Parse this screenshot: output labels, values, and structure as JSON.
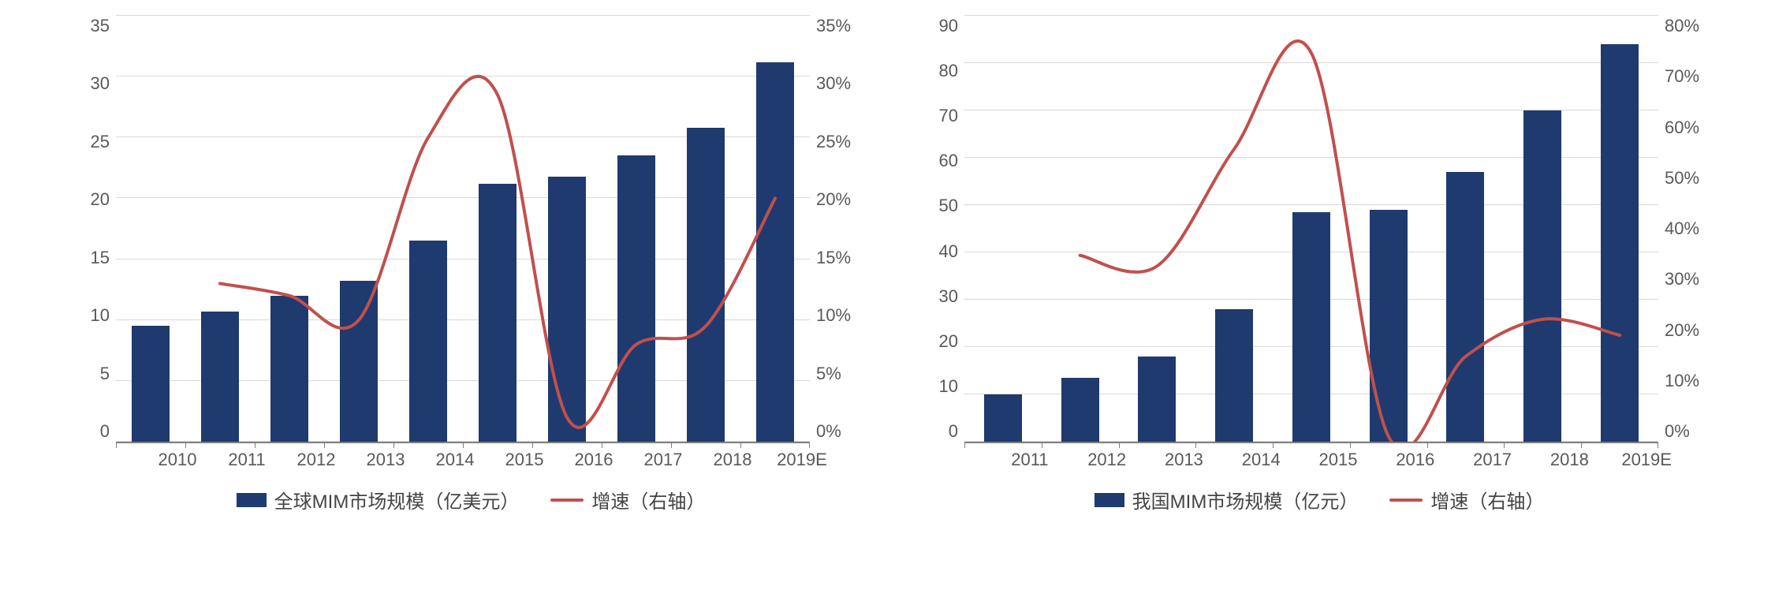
{
  "chart_left": {
    "type": "bar+line",
    "categories": [
      "2010",
      "2011",
      "2012",
      "2013",
      "2014",
      "2015",
      "2016",
      "2017",
      "2018",
      "2019E"
    ],
    "bar_values": [
      9.5,
      10.7,
      12.0,
      13.2,
      16.5,
      21.2,
      21.8,
      23.5,
      25.8,
      31.2
    ],
    "line_values": [
      null,
      13.0,
      12.0,
      10.0,
      25.0,
      28.5,
      2.0,
      8.0,
      9.5,
      20.0
    ],
    "y_left": {
      "min": 0,
      "max": 35,
      "step": 5
    },
    "y_right": {
      "min": 0,
      "max": 35,
      "step": 5,
      "suffix": "%"
    },
    "bar_color": "#1f3a6e",
    "line_color": "#c0504d",
    "line_width": 4,
    "grid_color": "#d9d9d9",
    "background_color": "#ffffff",
    "font_size_axis": 22,
    "legend": {
      "bar": "全球MIM市场规模（亿美元）",
      "line": "增速（右轴）"
    }
  },
  "chart_right": {
    "type": "bar+line",
    "categories": [
      "2011",
      "2012",
      "2013",
      "2014",
      "2015",
      "2016",
      "2017",
      "2018",
      "2019E"
    ],
    "bar_values": [
      10,
      13.5,
      18,
      28,
      48.5,
      49,
      57,
      70,
      84
    ],
    "line_values": [
      null,
      35,
      33,
      55,
      73,
      1,
      16,
      23,
      20
    ],
    "y_left": {
      "min": 0,
      "max": 90,
      "step": 10
    },
    "y_right": {
      "min": 0,
      "max": 80,
      "step": 10,
      "suffix": "%"
    },
    "bar_color": "#1f3a6e",
    "line_color": "#c0504d",
    "line_width": 4,
    "grid_color": "#d9d9d9",
    "background_color": "#ffffff",
    "font_size_axis": 22,
    "legend": {
      "bar": "我国MIM市场规模（亿元）",
      "line": "增速（右轴）"
    }
  }
}
